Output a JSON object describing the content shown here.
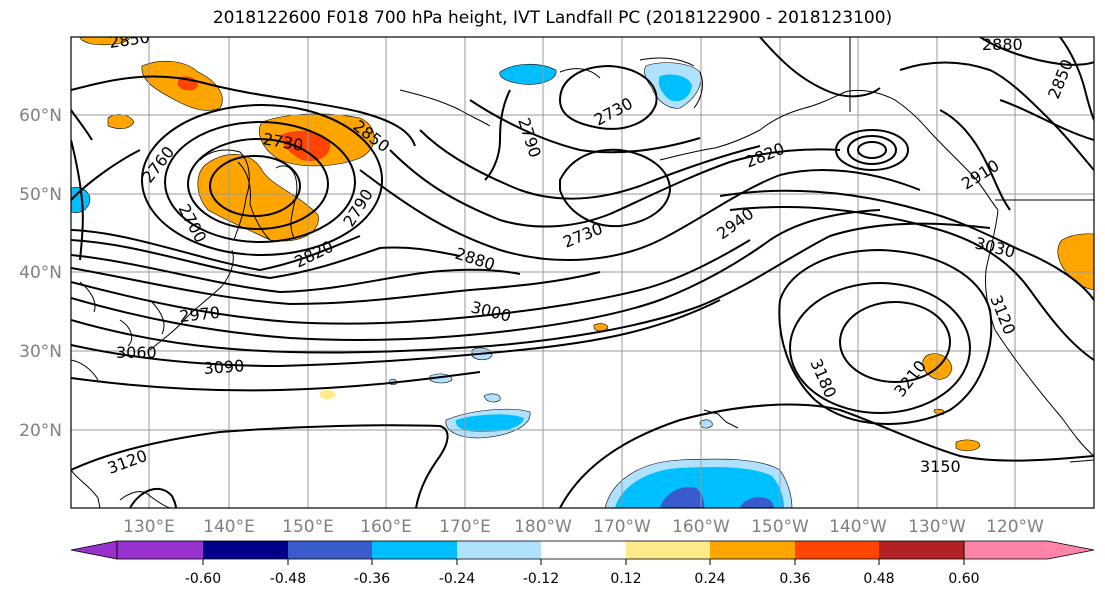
{
  "title": "2018122600 F018 700 hPa height, IVT Landfall PC (2018122900 - 2018123100)",
  "lat_labels": [
    "60°N",
    "50°N",
    "40°N",
    "30°N",
    "20°N"
  ],
  "lon_labels": [
    "130°E",
    "140°E",
    "150°E",
    "160°E",
    "170°E",
    "180°W",
    "170°W",
    "160°W",
    "150°W",
    "140°W",
    "130°W",
    "120°W"
  ],
  "contour_labels": [
    "2850",
    "2880",
    "2850",
    "2790",
    "2730",
    "2760",
    "2700",
    "2730",
    "2850",
    "2790",
    "2820",
    "2970",
    "3060",
    "3090",
    "3120",
    "2880",
    "3000",
    "2730",
    "2820",
    "2940",
    "2910",
    "3030",
    "3120",
    "3180",
    "3210",
    "3150"
  ],
  "colorbar": {
    "ticks": [
      "-0.60",
      "-0.48",
      "-0.36",
      "-0.24",
      "-0.12",
      "0.12",
      "0.24",
      "0.36",
      "0.48",
      "0.60"
    ],
    "colors": [
      "#9932cc",
      "#00008b",
      "#3a5bcc",
      "#00bfff",
      "#b0e2ff",
      "#ffffff",
      "#ffeb8a",
      "#ffa500",
      "#ff4500",
      "#b22222",
      "#ff85a8"
    ]
  },
  "fill_colors": {
    "orange": "#ffa500",
    "red": "#ff4500",
    "yellow": "#ffeb8a",
    "cyan": "#00bfff",
    "lightblue": "#b0e2ff",
    "blue": "#3a5bcc"
  }
}
